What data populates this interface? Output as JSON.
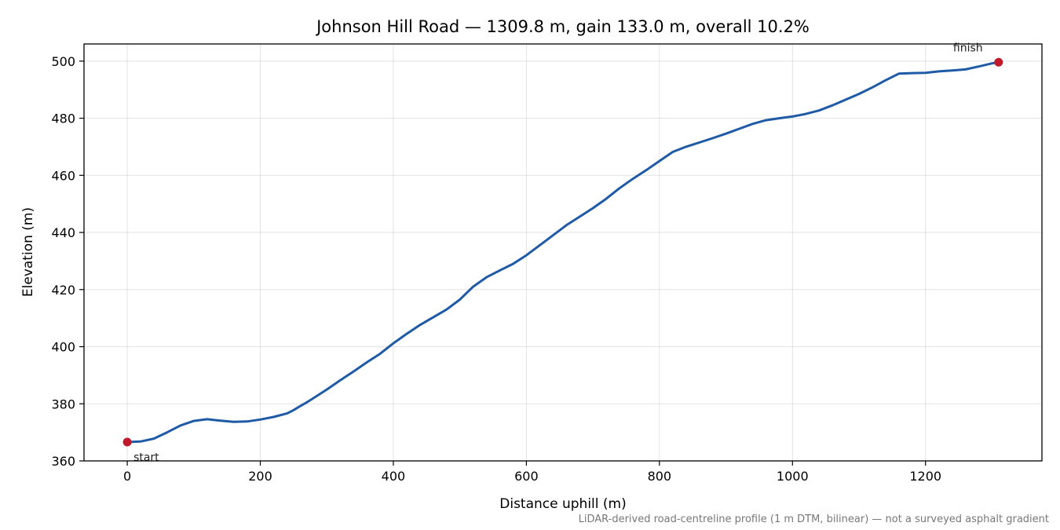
{
  "chart_data": {
    "type": "line",
    "title": "Johnson Hill Road — 1309.8 m, gain 133.0 m, overall 10.2%",
    "xlabel": "Distance uphill (m)",
    "ylabel": "Elevation (m)",
    "xlim": [
      -65,
      1375
    ],
    "ylim": [
      360,
      506
    ],
    "xticks": [
      0,
      200,
      400,
      600,
      800,
      1000,
      1200
    ],
    "yticks": [
      360,
      380,
      400,
      420,
      440,
      460,
      480,
      500
    ],
    "grid": true,
    "line_color": "#1f5aa6",
    "marker_color": "#c0192c",
    "series": [
      {
        "x": [
          0,
          20,
          40,
          60,
          80,
          100,
          120,
          140,
          160,
          180,
          200,
          220,
          240,
          250,
          260,
          270,
          280,
          300,
          320,
          340,
          360,
          380,
          400,
          420,
          440,
          460,
          480,
          500,
          520,
          540,
          560,
          580,
          600,
          620,
          640,
          660,
          680,
          700,
          720,
          740,
          760,
          780,
          800,
          820,
          840,
          860,
          880,
          900,
          920,
          940,
          960,
          980,
          1000,
          1020,
          1040,
          1060,
          1080,
          1100,
          1120,
          1140,
          1160,
          1180,
          1200,
          1220,
          1240,
          1260,
          1280,
          1300,
          1309.8
        ],
        "y": [
          366.6,
          366.8,
          367.8,
          370.0,
          372.4,
          374.0,
          374.6,
          374.1,
          373.7,
          373.8,
          374.5,
          375.4,
          376.6,
          377.8,
          379.2,
          380.5,
          382.0,
          385.0,
          388.2,
          391.3,
          394.5,
          397.5,
          401.2,
          404.5,
          407.6,
          410.3,
          413.0,
          416.5,
          421.0,
          424.3,
          426.7,
          429.0,
          432.0,
          435.5,
          439.0,
          442.5,
          445.5,
          448.5,
          451.8,
          455.5,
          458.8,
          461.8,
          465.0,
          468.2,
          470.0,
          471.5,
          473.0,
          474.6,
          476.3,
          478.0,
          479.3,
          480.0,
          480.6,
          481.5,
          482.7,
          484.5,
          486.5,
          488.5,
          490.8,
          493.3,
          495.6,
          495.8,
          495.9,
          496.4,
          496.7,
          497.1,
          498.1,
          499.2,
          499.6
        ]
      }
    ],
    "annotations": [
      {
        "text": "start",
        "x": 0,
        "y": 366.6
      },
      {
        "text": "finish",
        "x": 1309.8,
        "y": 499.6
      }
    ],
    "footnote": "LiDAR-derived road-centreline profile (1 m DTM, bilinear) — not a surveyed asphalt gradient"
  }
}
